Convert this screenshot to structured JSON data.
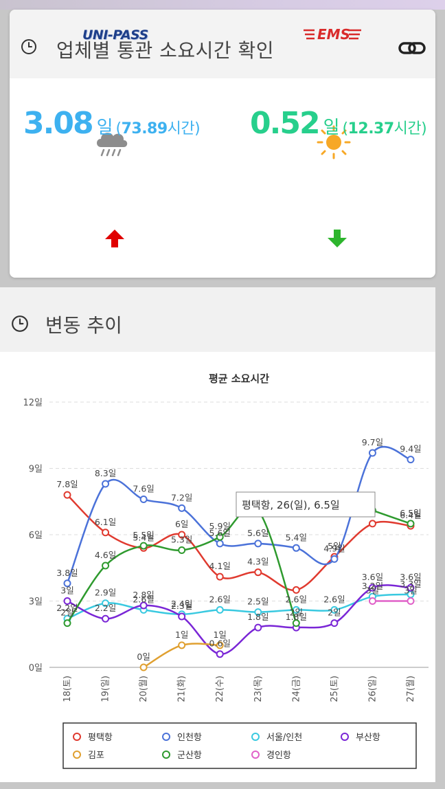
{
  "section1": {
    "title": "업체별 통관 소요시간 확인",
    "icons": [
      "clock-icon",
      "link-icon"
    ],
    "unipass": {
      "logo_text": "UNI-PASS",
      "weather_icon": "cloud-rain-icon",
      "value": "3.08",
      "unit": "일",
      "hours_open": "(",
      "hours": "73.89",
      "hours_unit": "시간)",
      "trend_icon": "arrow-up-icon",
      "color": "#3db1f0",
      "trend_color": "#e00000"
    },
    "ems": {
      "logo_text": "EMS",
      "weather_icon": "sun-icon",
      "value": "0.52",
      "unit": "일",
      "hours_open": "(",
      "hours": "12.37",
      "hours_unit": "시간)",
      "trend_icon": "arrow-down-icon",
      "color": "#27cf8c",
      "trend_color": "#2db52d"
    }
  },
  "section2": {
    "title": "변동 추이"
  },
  "chart_data": {
    "type": "line",
    "title": "평균 소요시간",
    "categories": [
      "18(토)",
      "19(일)",
      "20(월)",
      "21(화)",
      "22(수)",
      "23(목)",
      "24(금)",
      "25(토)",
      "26(일)",
      "27(월)"
    ],
    "yticks": [
      "0일",
      "3일",
      "6일",
      "9일",
      "12일"
    ],
    "ylim": [
      0,
      12
    ],
    "grid": true,
    "legend_position": "bottom",
    "series": [
      {
        "name": "평택항",
        "color": "#e03a2f",
        "values": [
          7.8,
          6.1,
          5.4,
          6,
          4.1,
          4.3,
          3.5,
          5,
          6.5,
          6.4
        ],
        "labels": [
          "7.8일",
          "6.1일",
          "5.4일",
          "6일",
          "4.1일",
          "4.3일",
          "",
          "5일",
          "",
          "6.4일"
        ]
      },
      {
        "name": "인천항",
        "color": "#4b72d9",
        "values": [
          3.8,
          8.3,
          7.6,
          7.2,
          5.6,
          5.6,
          5.4,
          4.9,
          9.7,
          9.4
        ],
        "labels": [
          "3.8일",
          "8.3일",
          "7.6일",
          "7.2일",
          "5.6일",
          "5.6일",
          "5.4일",
          "4.9일",
          "9.7일",
          "9.4일"
        ]
      },
      {
        "name": "서울/인천",
        "color": "#39c9e0",
        "values": [
          2.2,
          2.9,
          2.6,
          2.4,
          2.6,
          2.5,
          2.6,
          2.6,
          3.2,
          3.3
        ],
        "labels": [
          "2.2일",
          "2.9일",
          "2.6일",
          "2.4일",
          "2.6일",
          "2.5일",
          "2.6일",
          "2.6일",
          "3.2일",
          "3.3일"
        ]
      },
      {
        "name": "부산항",
        "color": "#7a26d6",
        "values": [
          3,
          2.2,
          2.8,
          2.3,
          0.6,
          1.8,
          1.8,
          2,
          3.6,
          3.6
        ],
        "labels": [
          "3일",
          "2.2일",
          "2.8일",
          "2.3일",
          "0.6일",
          "1.8일",
          "1.8일",
          "2일",
          "3.6일",
          "3.6일"
        ]
      },
      {
        "name": "김포",
        "color": "#e0a030",
        "values": [
          null,
          null,
          0,
          1,
          1,
          null,
          null,
          null,
          null,
          null
        ],
        "labels": [
          "",
          "",
          "0일",
          "1일",
          "1일",
          "",
          "",
          "",
          "",
          ""
        ]
      },
      {
        "name": "군산항",
        "color": "#2e9a2e",
        "values": [
          2,
          4.6,
          5.5,
          5.3,
          5.9,
          7.1,
          2,
          null,
          7.1,
          6.5
        ],
        "labels": [
          "2일",
          "4.6일",
          "5.5일",
          "5.3일",
          "5.9일",
          "",
          "2일",
          "",
          "",
          "6.5일"
        ]
      },
      {
        "name": "경인항",
        "color": "#e060c8",
        "values": [
          null,
          null,
          null,
          null,
          null,
          null,
          null,
          null,
          3,
          3
        ],
        "labels": [
          "",
          "",
          "",
          "",
          "",
          "",
          "",
          "",
          "3일",
          "3일"
        ]
      }
    ],
    "tooltip": {
      "text": "평택항, 26(일), 6.5일",
      "category": "26(일)",
      "series": "평택항",
      "value": 6.5
    }
  }
}
